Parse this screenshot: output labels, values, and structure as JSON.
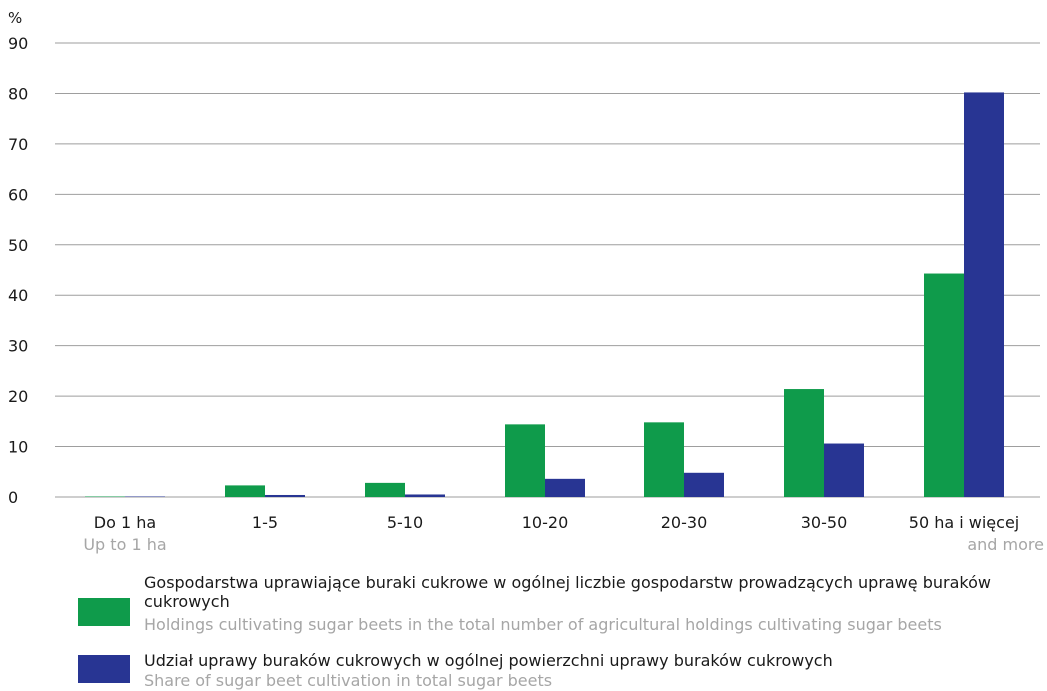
{
  "chart_data": {
    "type": "bar",
    "ylabel": "%",
    "ylim": [
      0,
      90
    ],
    "yticks": [
      "0",
      "10",
      "20",
      "30",
      "40",
      "50",
      "60",
      "70",
      "80",
      "90"
    ],
    "grid": true,
    "categories": [
      "Do 1 ha",
      "1-5",
      "5-10",
      "10-20",
      "20-30",
      "30-50",
      "50 ha i więcej"
    ],
    "category_subtitles": [
      "Up to 1 ha",
      "",
      "",
      "",
      "",
      "",
      "and more"
    ],
    "series": [
      {
        "name": "Gospodarstwa uprawiające buraki cukrowe w ogólnej liczbie gospodarstw prowadzących uprawę buraków cukrowych",
        "name_en": "Holdings cultivating sugar beets in the total number of agricultural holdings cultivating sugar beets",
        "color": "#0f9b4b",
        "values": [
          0.1,
          2.3,
          2.8,
          14.4,
          14.8,
          21.4,
          44.3
        ]
      },
      {
        "name": "Udział uprawy buraków cukrowych w ogólnej powierzchni uprawy buraków cukrowych",
        "name_en": "Share of sugar beet cultivation in total sugar beets",
        "color": "#283593",
        "values": [
          0.1,
          0.4,
          0.5,
          3.6,
          4.8,
          10.6,
          80.2
        ]
      }
    ]
  }
}
